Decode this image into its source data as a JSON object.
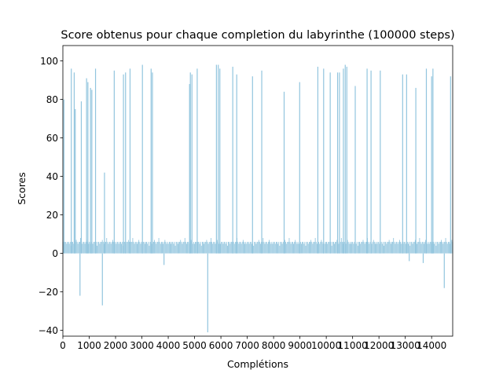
{
  "chart_data": {
    "type": "bar",
    "title": "Score obtenus pour chaque completion du labyrinthe (100000 steps)",
    "xlabel": "Complétions",
    "ylabel": "Scores",
    "xlim": [
      0,
      14800
    ],
    "ylim": [
      -43,
      108
    ],
    "x_ticks": [
      0,
      1000,
      2000,
      3000,
      4000,
      5000,
      6000,
      7000,
      8000,
      9000,
      10000,
      11000,
      12000,
      13000,
      14000
    ],
    "x_tick_labels": [
      "0",
      "1000",
      "2000",
      "3000",
      "4000",
      "5000",
      "6000",
      "7000",
      "8000",
      "9000",
      "10000",
      "11000",
      "12000",
      "13000",
      "14000"
    ],
    "y_ticks": [
      -40,
      -20,
      0,
      20,
      40,
      60,
      80,
      100
    ],
    "y_tick_labels": [
      "−40",
      "−20",
      "0",
      "20",
      "40",
      "60",
      "80",
      "100"
    ],
    "bar_color": "#92c5de",
    "grid": false,
    "baseline_values": [
      6,
      5,
      6,
      6,
      5,
      6,
      6,
      5,
      6,
      4,
      6,
      6,
      5,
      6,
      6,
      7,
      6,
      5,
      6,
      6,
      8,
      6,
      5,
      6,
      6,
      5,
      6,
      7,
      6,
      5
    ],
    "spikes": [
      {
        "x": 40,
        "y": 80
      },
      {
        "x": 320,
        "y": 96
      },
      {
        "x": 430,
        "y": 94
      },
      {
        "x": 470,
        "y": 75
      },
      {
        "x": 650,
        "y": -22
      },
      {
        "x": 700,
        "y": 79
      },
      {
        "x": 900,
        "y": 91
      },
      {
        "x": 950,
        "y": 89
      },
      {
        "x": 1050,
        "y": 86
      },
      {
        "x": 1100,
        "y": 85
      },
      {
        "x": 1240,
        "y": 96
      },
      {
        "x": 1500,
        "y": -27
      },
      {
        "x": 1580,
        "y": 42
      },
      {
        "x": 1950,
        "y": 95
      },
      {
        "x": 2300,
        "y": 93
      },
      {
        "x": 2380,
        "y": 94
      },
      {
        "x": 2550,
        "y": 96
      },
      {
        "x": 3020,
        "y": 98
      },
      {
        "x": 3350,
        "y": 96
      },
      {
        "x": 3400,
        "y": 94
      },
      {
        "x": 3840,
        "y": -6
      },
      {
        "x": 4810,
        "y": 88
      },
      {
        "x": 4840,
        "y": 94
      },
      {
        "x": 4900,
        "y": 93
      },
      {
        "x": 5100,
        "y": 96
      },
      {
        "x": 5500,
        "y": -41
      },
      {
        "x": 5830,
        "y": 98
      },
      {
        "x": 5900,
        "y": 98
      },
      {
        "x": 5960,
        "y": 96
      },
      {
        "x": 6450,
        "y": 97
      },
      {
        "x": 6600,
        "y": 93
      },
      {
        "x": 7200,
        "y": 92
      },
      {
        "x": 7550,
        "y": 95
      },
      {
        "x": 8400,
        "y": 84
      },
      {
        "x": 8990,
        "y": 89
      },
      {
        "x": 9680,
        "y": 97
      },
      {
        "x": 9900,
        "y": 96
      },
      {
        "x": 10150,
        "y": 94
      },
      {
        "x": 10430,
        "y": 94
      },
      {
        "x": 10500,
        "y": 94
      },
      {
        "x": 10650,
        "y": 96
      },
      {
        "x": 10720,
        "y": 98
      },
      {
        "x": 10780,
        "y": 97
      },
      {
        "x": 11100,
        "y": 87
      },
      {
        "x": 11550,
        "y": 96
      },
      {
        "x": 11700,
        "y": 95
      },
      {
        "x": 12050,
        "y": 95
      },
      {
        "x": 12900,
        "y": 93
      },
      {
        "x": 13050,
        "y": 93
      },
      {
        "x": 13150,
        "y": -4
      },
      {
        "x": 13400,
        "y": 86
      },
      {
        "x": 13680,
        "y": -5
      },
      {
        "x": 13800,
        "y": 96
      },
      {
        "x": 14000,
        "y": 92
      },
      {
        "x": 14050,
        "y": 96
      },
      {
        "x": 14480,
        "y": -18
      },
      {
        "x": 14720,
        "y": 92
      }
    ]
  }
}
